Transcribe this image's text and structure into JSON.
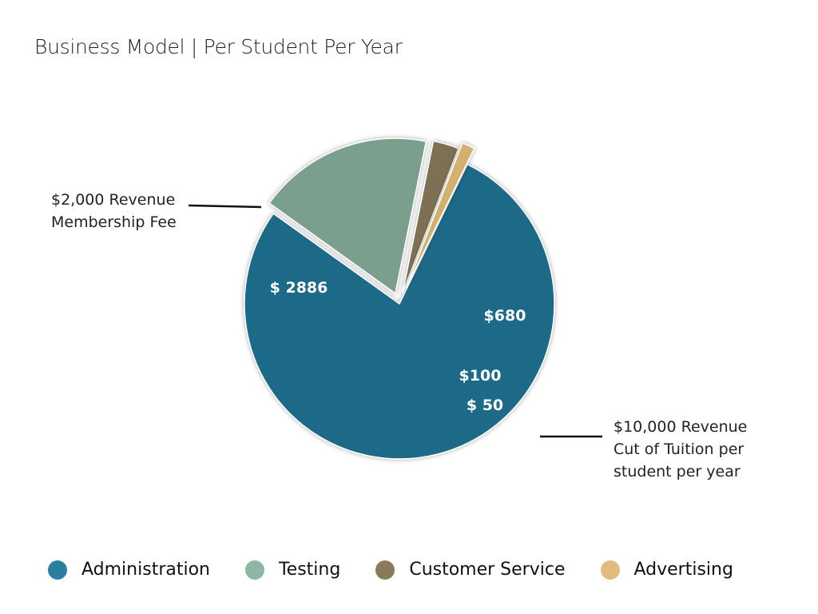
{
  "title": "Business Model | Per Student Per Year",
  "annotations": {
    "left": [
      "$2,000 Revenue",
      "Membership Fee"
    ],
    "right": [
      "$10,000 Revenue",
      "Cut of Tuition per",
      "student per year"
    ]
  },
  "chart_data": {
    "type": "pie",
    "title": "Business Model | Per Student Per Year",
    "slices": [
      {
        "name": "Administration",
        "value": 2886,
        "label": "$ 2886",
        "color": "#1b6a87"
      },
      {
        "name": "Testing",
        "value": 680,
        "label": "$680",
        "color": "#7a9f8c"
      },
      {
        "name": "Customer Service",
        "value": 100,
        "label": "$100",
        "color": "#7d6f52"
      },
      {
        "name": "Advertising",
        "value": 50,
        "label": "$ 50",
        "color": "#d4b06e"
      }
    ],
    "legend_position": "bottom"
  },
  "legend": [
    {
      "label": "Administration",
      "color": "#2c7ea0"
    },
    {
      "label": "Testing",
      "color": "#8fb5a4"
    },
    {
      "label": "Customer Service",
      "color": "#8a7a5c"
    },
    {
      "label": "Advertising",
      "color": "#e0bd7e"
    }
  ]
}
